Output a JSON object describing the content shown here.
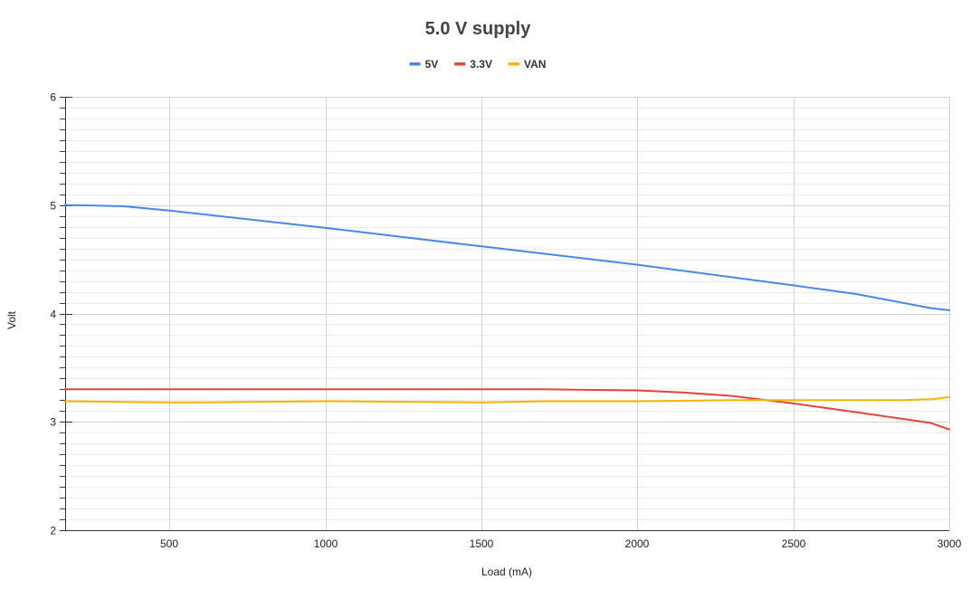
{
  "chart_data": {
    "type": "line",
    "title": "5.0 V supply",
    "xlabel": "Load (mA)",
    "ylabel": "Volt",
    "xlim": [
      165,
      3000
    ],
    "ylim": [
      2,
      6
    ],
    "x_ticks": [
      500,
      1000,
      1500,
      2000,
      2500,
      3000
    ],
    "y_ticks": [
      2,
      3,
      4,
      5,
      6
    ],
    "x_tick_labels": [
      "500",
      "1000",
      "1500",
      "2000",
      "2500",
      "3000"
    ],
    "y_tick_labels": [
      "2",
      "3",
      "4",
      "5",
      "6"
    ],
    "y_minor_step": 0.1,
    "grid": true,
    "legend_position": "top",
    "series": [
      {
        "name": "5V",
        "color": "#4a86e8",
        "points": [
          [
            165,
            5.0
          ],
          [
            200,
            5.0
          ],
          [
            350,
            4.99
          ],
          [
            500,
            4.95
          ],
          [
            1000,
            4.79
          ],
          [
            1500,
            4.62
          ],
          [
            2000,
            4.45
          ],
          [
            2500,
            4.26
          ],
          [
            2700,
            4.18
          ],
          [
            2940,
            4.05
          ],
          [
            3000,
            4.03
          ]
        ]
      },
      {
        "name": "3.3V",
        "color": "#e5443a",
        "points": [
          [
            165,
            3.3
          ],
          [
            500,
            3.3
          ],
          [
            1000,
            3.3
          ],
          [
            1500,
            3.3
          ],
          [
            1700,
            3.3
          ],
          [
            2000,
            3.29
          ],
          [
            2150,
            3.27
          ],
          [
            2300,
            3.24
          ],
          [
            2500,
            3.17
          ],
          [
            2700,
            3.09
          ],
          [
            2940,
            2.99
          ],
          [
            3000,
            2.93
          ]
        ]
      },
      {
        "name": "VAN",
        "color": "#f6b400",
        "points": [
          [
            165,
            3.19
          ],
          [
            500,
            3.18
          ],
          [
            600,
            3.18
          ],
          [
            1000,
            3.19
          ],
          [
            1500,
            3.18
          ],
          [
            1700,
            3.19
          ],
          [
            2000,
            3.19
          ],
          [
            2300,
            3.2
          ],
          [
            2500,
            3.2
          ],
          [
            2700,
            3.2
          ],
          [
            2850,
            3.2
          ],
          [
            2950,
            3.21
          ],
          [
            3000,
            3.23
          ]
        ]
      }
    ]
  }
}
